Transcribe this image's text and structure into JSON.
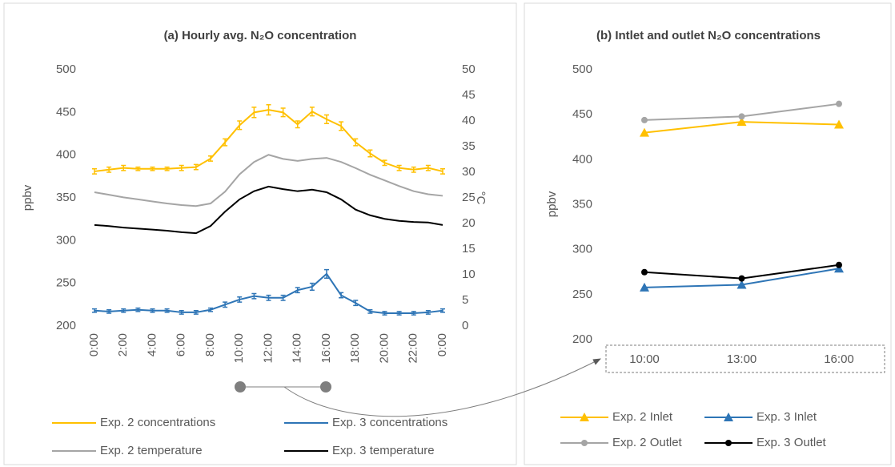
{
  "chart_data": [
    {
      "type": "line",
      "title": "(a) Hourly avg. N₂O concentration",
      "ylabel": "ppbv",
      "y2label": "°C",
      "categories": [
        "0:00",
        null,
        "2:00",
        null,
        "4:00",
        null,
        "6:00",
        null,
        "8:00",
        null,
        "10:00",
        null,
        "12:00",
        null,
        "14:00",
        null,
        "16:00",
        null,
        "18:00",
        null,
        "20:00",
        null,
        "22:00",
        null,
        "0:00"
      ],
      "ylim": [
        200,
        500
      ],
      "yticks": [
        200,
        250,
        300,
        350,
        400,
        450,
        500
      ],
      "y2lim": [
        0,
        50
      ],
      "y2ticks": [
        0,
        5,
        10,
        15,
        20,
        25,
        30,
        35,
        40,
        45,
        50
      ],
      "series": [
        {
          "name": "Exp. 2 concentrations",
          "color": "#ffc000",
          "values": [
            381,
            383,
            385,
            384,
            384,
            384,
            385,
            386,
            396,
            415,
            435,
            450,
            453,
            450,
            436,
            451,
            442,
            434,
            415,
            402,
            391,
            385,
            383,
            385,
            381
          ],
          "errors": [
            3,
            3,
            3,
            2,
            2,
            2,
            3,
            3,
            3,
            4,
            5,
            6,
            6,
            5,
            4,
            5,
            5,
            5,
            4,
            4,
            3,
            3,
            3,
            3,
            3
          ]
        },
        {
          "name": "Exp. 3 concentrations",
          "color": "#2e75b6",
          "values": [
            218,
            217,
            218,
            219,
            218,
            218,
            216,
            216,
            219,
            225,
            231,
            235,
            233,
            233,
            242,
            246,
            261,
            236,
            227,
            217,
            215,
            215,
            215,
            216,
            218
          ],
          "errors": [
            2,
            2,
            2,
            2,
            2,
            2,
            2,
            2,
            2,
            3,
            3,
            3,
            3,
            3,
            3,
            4,
            5,
            3,
            3,
            2,
            2,
            2,
            2,
            2,
            2
          ]
        },
        {
          "name": "Exp. 2 temperature",
          "color": "#a5a5a5",
          "axis": "y2",
          "values": [
            26.1,
            25.6,
            25.1,
            24.7,
            24.3,
            23.9,
            23.6,
            23.4,
            23.9,
            26.2,
            29.6,
            32.0,
            33.4,
            32.6,
            32.2,
            32.6,
            32.8,
            32.0,
            30.8,
            29.5,
            28.4,
            27.3,
            26.3,
            25.7,
            25.4
          ]
        },
        {
          "name": "Exp. 3 temperature",
          "color": "#000000",
          "axis": "y2",
          "values": [
            19.7,
            19.5,
            19.2,
            19.0,
            18.8,
            18.6,
            18.3,
            18.1,
            19.5,
            22.3,
            24.7,
            26.3,
            27.2,
            26.7,
            26.3,
            26.6,
            26.1,
            24.7,
            22.7,
            21.6,
            20.9,
            20.5,
            20.3,
            20.2,
            19.7
          ]
        }
      ]
    },
    {
      "type": "line",
      "title": "(b) Intlet and outlet N₂O concentrations",
      "ylabel": "ppbv",
      "categories": [
        "10:00",
        "13:00",
        "16:00"
      ],
      "ylim": [
        200,
        500
      ],
      "yticks": [
        200,
        250,
        300,
        350,
        400,
        450,
        500
      ],
      "series": [
        {
          "name": "Exp. 2 Inlet",
          "color": "#ffc000",
          "marker": "triangle",
          "values": [
            430,
            442,
            439
          ]
        },
        {
          "name": "Exp. 3 Inlet",
          "color": "#2e75b6",
          "marker": "triangle",
          "values": [
            258,
            261,
            279
          ]
        },
        {
          "name": "Exp. 2 Outlet",
          "color": "#a5a5a5",
          "marker": "circle",
          "values": [
            444,
            448,
            462
          ]
        },
        {
          "name": "Exp. 3 Outlet",
          "color": "#000000",
          "marker": "circle",
          "values": [
            275,
            268,
            283
          ]
        }
      ]
    }
  ]
}
